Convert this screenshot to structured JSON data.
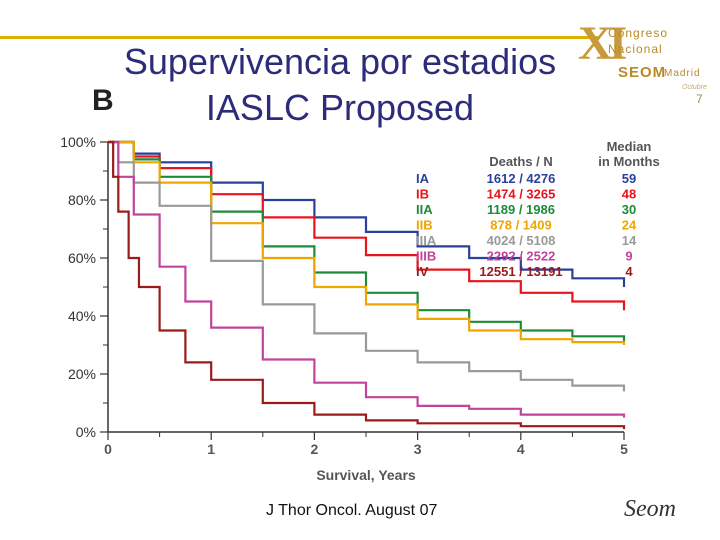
{
  "slide": {
    "title_line1": "Supervivencia por estadios",
    "title_line2": "IASLC Proposed",
    "panel_letter": "B",
    "footer": "J Thor Oncol. August 07"
  },
  "logo": {
    "roman": "XI",
    "word1": "Congreso",
    "word2": "Nacional",
    "org": "SEOM",
    "city": "Madrid",
    "month": "Octubre",
    "digit": "7"
  },
  "footer_logo": {
    "text": "Seom"
  },
  "colors": {
    "title": "#2c2c7a",
    "accent_bar": "#e0b000",
    "IA": "#2b3f9c",
    "IB": "#e8141b",
    "IIA": "#1e8a3a",
    "IIB": "#f0a500",
    "IIIA": "#999999",
    "IIIB": "#c0449c",
    "IV": "#9b1b1b"
  },
  "chart_data": {
    "type": "line",
    "title": "",
    "xlabel": "Survival, Years",
    "ylabel": "",
    "xlim": [
      0,
      5
    ],
    "ylim": [
      0,
      100
    ],
    "xticks": [
      "0",
      "1",
      "2",
      "3",
      "4",
      "5"
    ],
    "yticks": [
      "0%",
      "20%",
      "40%",
      "60%",
      "80%",
      "100%"
    ],
    "legend": {
      "header_deaths": "Deaths / N",
      "header_median_1": "Median",
      "header_median_2": "in Months",
      "rows": [
        {
          "stage": "IA",
          "deaths_n": "1612 / 4276",
          "median": "59"
        },
        {
          "stage": "IB",
          "deaths_n": "1474 / 3265",
          "median": "48"
        },
        {
          "stage": "IIA",
          "deaths_n": "1189 / 1986",
          "median": "30"
        },
        {
          "stage": "IIB",
          "deaths_n": "878 / 1409",
          "median": "24"
        },
        {
          "stage": "IIIA",
          "deaths_n": "4024 / 5108",
          "median": "14"
        },
        {
          "stage": "IIIB",
          "deaths_n": "2292 / 2522",
          "median": "9"
        },
        {
          "stage": "IV",
          "deaths_n": "12551 / 13191",
          "median": "4"
        }
      ]
    },
    "series": [
      {
        "name": "IA",
        "color": "#2b3f9c",
        "x": [
          0,
          0.25,
          0.5,
          1,
          1.5,
          2,
          2.5,
          3,
          3.5,
          4,
          4.5,
          5
        ],
        "values": [
          100,
          96,
          93,
          86,
          80,
          74,
          69,
          64,
          60,
          56,
          53,
          50
        ]
      },
      {
        "name": "IB",
        "color": "#e8141b",
        "x": [
          0,
          0.25,
          0.5,
          1,
          1.5,
          2,
          2.5,
          3,
          3.5,
          4,
          4.5,
          5
        ],
        "values": [
          100,
          95,
          91,
          82,
          74,
          67,
          61,
          56,
          52,
          48,
          45,
          42
        ]
      },
      {
        "name": "IIA",
        "color": "#1e8a3a",
        "x": [
          0,
          0.25,
          0.5,
          1,
          1.5,
          2,
          2.5,
          3,
          3.5,
          4,
          4.5,
          5
        ],
        "values": [
          100,
          94,
          88,
          76,
          64,
          55,
          48,
          42,
          38,
          35,
          33,
          31
        ]
      },
      {
        "name": "IIB",
        "color": "#f0a500",
        "x": [
          0,
          0.25,
          0.5,
          1,
          1.5,
          2,
          2.5,
          3,
          3.5,
          4,
          4.5,
          5
        ],
        "values": [
          100,
          93,
          86,
          72,
          60,
          50,
          44,
          39,
          35,
          32,
          31,
          30
        ]
      },
      {
        "name": "IIIA",
        "color": "#999999",
        "x": [
          0,
          0.1,
          0.25,
          0.5,
          1,
          1.5,
          2,
          2.5,
          3,
          3.5,
          4,
          4.5,
          5
        ],
        "values": [
          100,
          93,
          86,
          78,
          59,
          44,
          34,
          28,
          24,
          21,
          18,
          16,
          14
        ]
      },
      {
        "name": "IIIB",
        "color": "#c0449c",
        "x": [
          0,
          0.1,
          0.25,
          0.5,
          0.75,
          1,
          1.5,
          2,
          2.5,
          3,
          3.5,
          4,
          4.5,
          5
        ],
        "values": [
          100,
          88,
          75,
          57,
          45,
          36,
          25,
          17,
          12,
          9,
          8,
          6,
          6,
          5
        ]
      },
      {
        "name": "IV",
        "color": "#9b1b1b",
        "x": [
          0,
          0.05,
          0.1,
          0.2,
          0.3,
          0.5,
          0.75,
          1,
          1.5,
          2,
          2.5,
          3,
          4,
          5
        ],
        "values": [
          100,
          88,
          76,
          60,
          50,
          35,
          24,
          18,
          10,
          6,
          4,
          3,
          2,
          1
        ]
      }
    ]
  }
}
